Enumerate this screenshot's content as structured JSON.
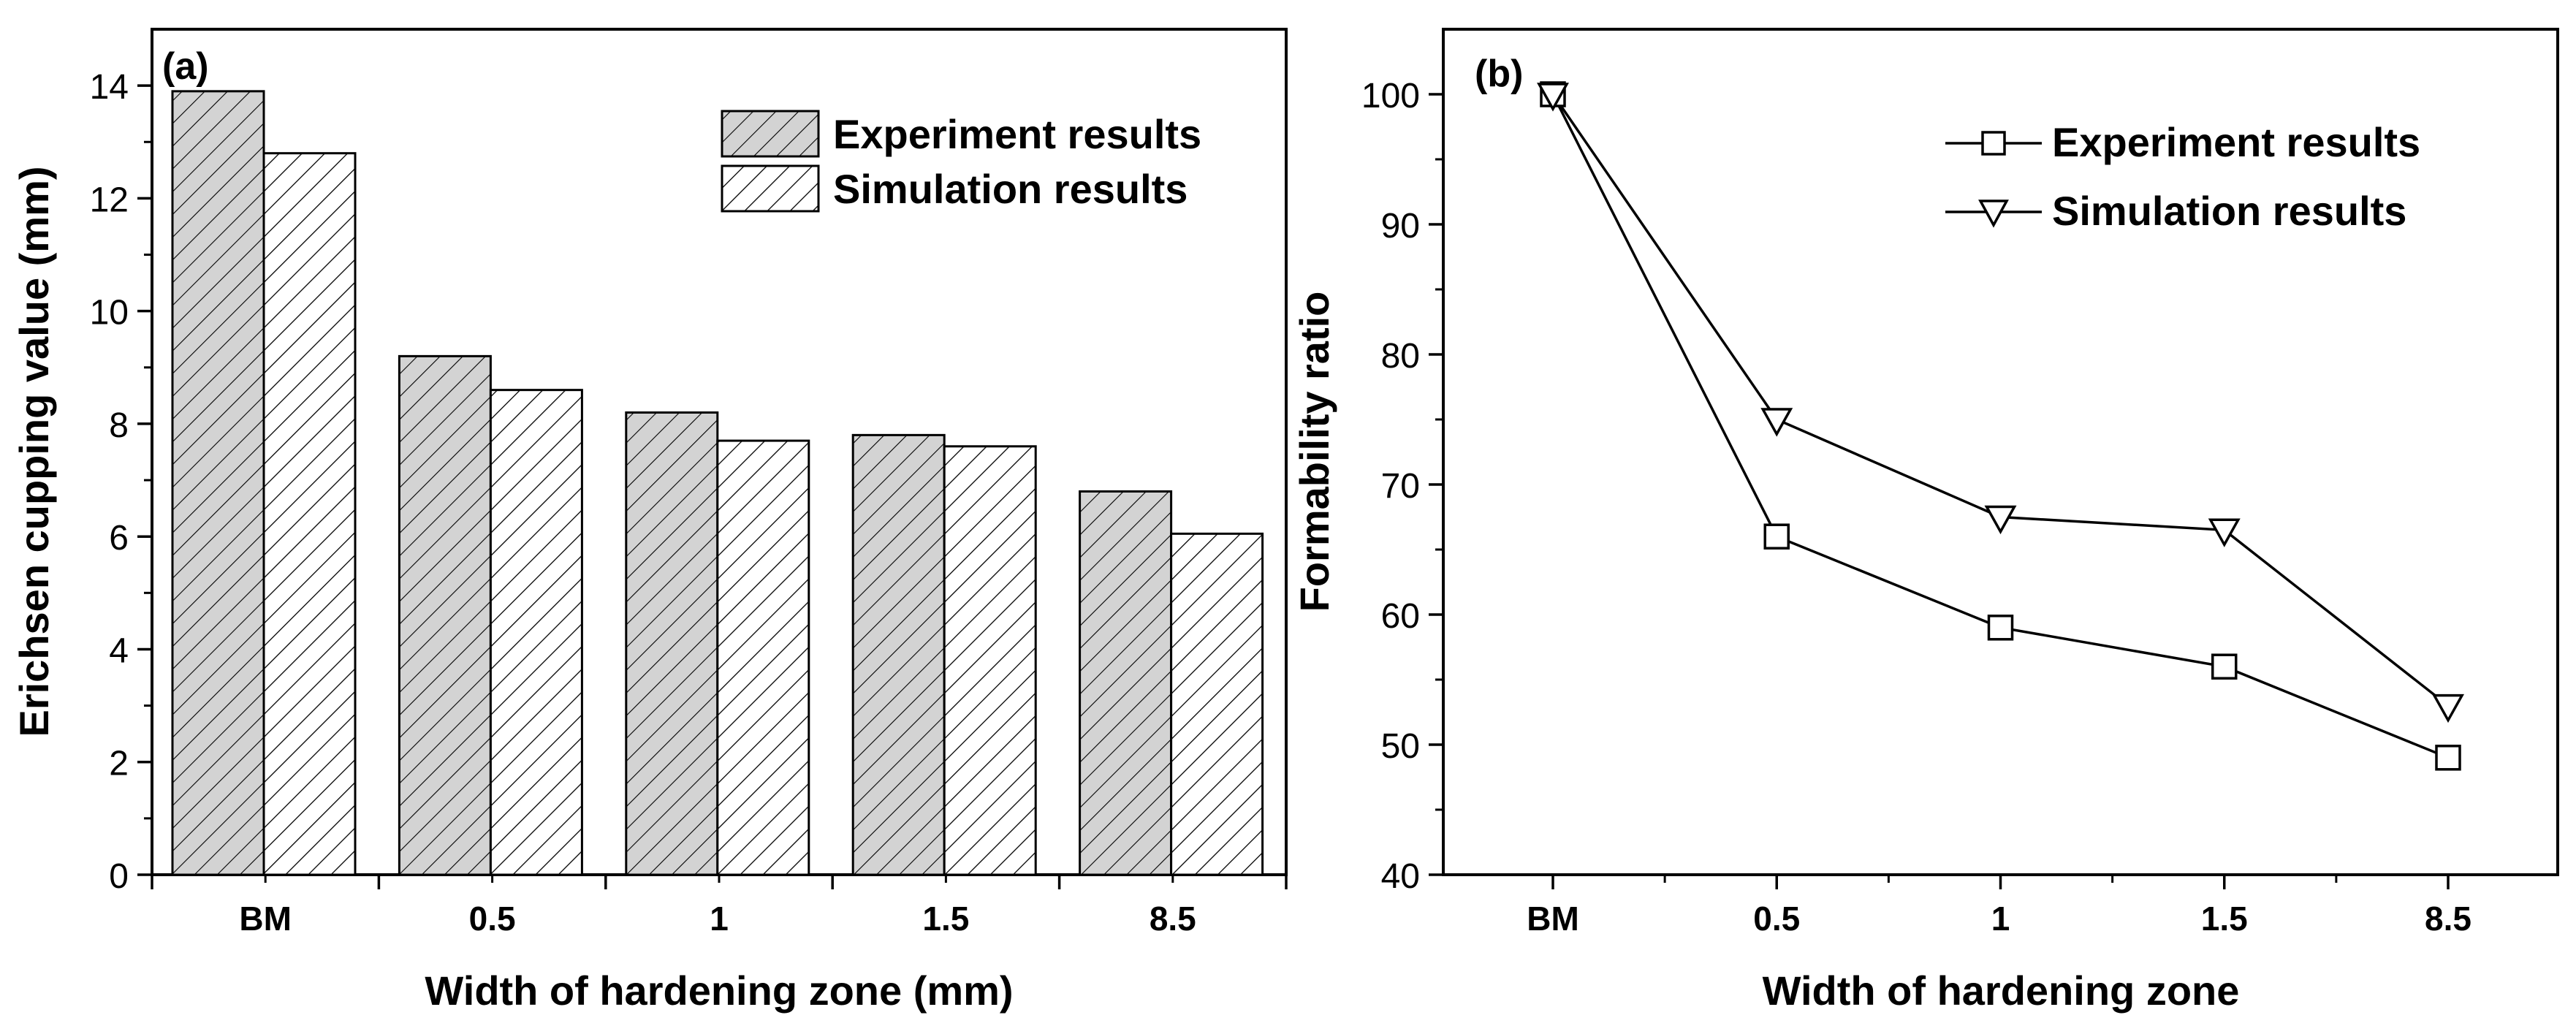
{
  "chart_data": [
    {
      "panel_label": "(a)",
      "type": "bar",
      "categories": [
        "BM",
        "0.5",
        "1",
        "1.5",
        "8.5"
      ],
      "series": [
        {
          "name": "Experiment results",
          "values": [
            13.9,
            9.2,
            8.2,
            7.8,
            6.8
          ]
        },
        {
          "name": "Simulation results",
          "values": [
            12.8,
            8.6,
            7.7,
            7.6,
            6.05
          ]
        }
      ],
      "xlabel": "Width of hardening zone (mm)",
      "ylabel": "Erichsen cupping value (mm)",
      "ylim": [
        0,
        15
      ],
      "yticks": [
        0,
        2,
        4,
        6,
        8,
        10,
        12,
        14
      ],
      "legend_position": "top-right",
      "grid": false
    },
    {
      "panel_label": "(b)",
      "type": "line",
      "categories": [
        "BM",
        "0.5",
        "1",
        "1.5",
        "8.5"
      ],
      "series": [
        {
          "name": "Experiment results",
          "marker": "square",
          "values": [
            100,
            66,
            59,
            56,
            49
          ]
        },
        {
          "name": "Simulation results",
          "marker": "triangle-down",
          "values": [
            100,
            75,
            67.5,
            66.5,
            53
          ]
        }
      ],
      "xlabel": "Width of hardening zone",
      "ylabel": "Formability ratio",
      "ylim": [
        40,
        105
      ],
      "yticks": [
        40,
        50,
        60,
        70,
        80,
        90,
        100
      ],
      "legend_position": "top-right",
      "grid": false
    }
  ]
}
